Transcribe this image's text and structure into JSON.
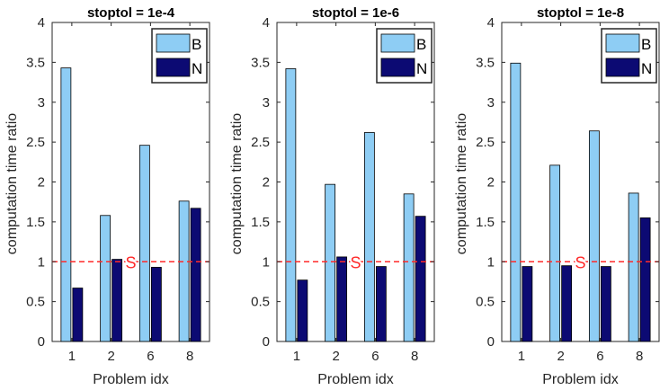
{
  "figure": {
    "ylabel": "computation time ratio",
    "xlabel": "Problem idx",
    "colors": {
      "B": "#8ecdf4",
      "N": "#0c0a73",
      "reference": "#ff2a2a",
      "axis": "#262626"
    }
  },
  "chart_data": [
    {
      "type": "bar",
      "title": "stoptol = 1e-4",
      "xlabel": "Problem idx",
      "ylabel": "computation time ratio",
      "categories": [
        "1",
        "2",
        "6",
        "8"
      ],
      "ylim": [
        0,
        4
      ],
      "yticks": [
        "0",
        "0.5",
        "1",
        "1.5",
        "2",
        "2.5",
        "3",
        "3.5",
        "4"
      ],
      "series": [
        {
          "name": "B",
          "values": [
            3.43,
            1.58,
            2.46,
            1.76
          ]
        },
        {
          "name": "N",
          "values": [
            0.67,
            1.03,
            0.93,
            1.67
          ]
        }
      ],
      "reference": {
        "value": 1,
        "label": "S",
        "style": "dashed"
      },
      "legend": "top-right",
      "grid": false
    },
    {
      "type": "bar",
      "title": "stoptol = 1e-6",
      "xlabel": "Problem idx",
      "ylabel": "computation time ratio",
      "categories": [
        "1",
        "2",
        "6",
        "8"
      ],
      "ylim": [
        0,
        4
      ],
      "yticks": [
        "0",
        "0.5",
        "1",
        "1.5",
        "2",
        "2.5",
        "3",
        "3.5",
        "4"
      ],
      "series": [
        {
          "name": "B",
          "values": [
            3.42,
            1.97,
            2.62,
            1.85
          ]
        },
        {
          "name": "N",
          "values": [
            0.77,
            1.06,
            0.94,
            1.57
          ]
        }
      ],
      "reference": {
        "value": 1,
        "label": "S",
        "style": "dashed"
      },
      "legend": "top-right",
      "grid": false
    },
    {
      "type": "bar",
      "title": "stoptol = 1e-8",
      "xlabel": "Problem idx",
      "ylabel": "computation time ratio",
      "categories": [
        "1",
        "2",
        "6",
        "8"
      ],
      "ylim": [
        0,
        4
      ],
      "yticks": [
        "0",
        "0.5",
        "1",
        "1.5",
        "2",
        "2.5",
        "3",
        "3.5",
        "4"
      ],
      "series": [
        {
          "name": "B",
          "values": [
            3.49,
            2.21,
            2.64,
            1.86
          ]
        },
        {
          "name": "N",
          "values": [
            0.94,
            0.95,
            0.94,
            1.55
          ]
        }
      ],
      "reference": {
        "value": 1,
        "label": "S",
        "style": "dashed"
      },
      "legend": "top-right",
      "grid": false
    }
  ]
}
